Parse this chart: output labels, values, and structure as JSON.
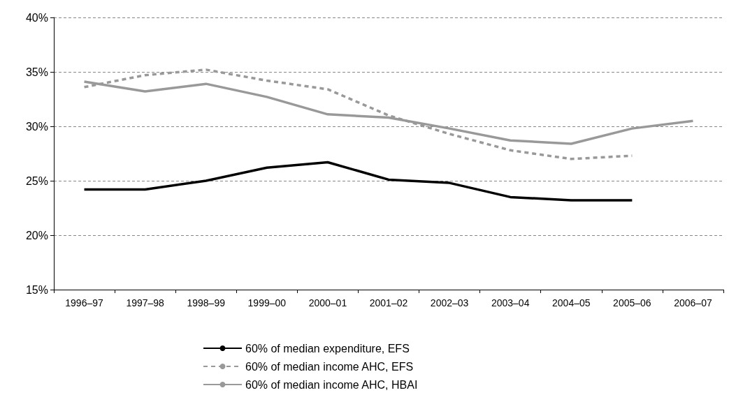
{
  "chart_data": {
    "type": "line",
    "categories": [
      "1996–97",
      "1997–98",
      "1998–99",
      "1999–00",
      "2000–01",
      "2001–02",
      "2002–03",
      "2003–04",
      "2004–05",
      "2005–06",
      "2006–07"
    ],
    "series": [
      {
        "name": "60% of median expenditure, EFS",
        "color": "#000000",
        "line_style": "solid",
        "values": [
          24.2,
          24.2,
          25.0,
          26.2,
          26.7,
          25.1,
          24.8,
          23.5,
          23.2,
          23.2,
          null
        ]
      },
      {
        "name": "60% of median income AHC, EFS",
        "color": "#999999",
        "line_style": "dashed",
        "values": [
          33.6,
          34.7,
          35.2,
          34.2,
          33.4,
          31.0,
          29.3,
          27.8,
          27.0,
          27.3,
          null
        ]
      },
      {
        "name": "60% of median income AHC, HBAI",
        "color": "#999999",
        "line_style": "solid",
        "values": [
          34.1,
          33.2,
          33.9,
          32.7,
          31.1,
          30.8,
          29.8,
          28.7,
          28.4,
          29.8,
          30.5
        ]
      }
    ],
    "ylim": [
      15,
      40
    ],
    "yticks": [
      {
        "value": 15,
        "label": "15%"
      },
      {
        "value": 20,
        "label": "20%"
      },
      {
        "value": 25,
        "label": "25%"
      },
      {
        "value": 30,
        "label": "30%"
      },
      {
        "value": 35,
        "label": "35%"
      },
      {
        "value": 40,
        "label": "40%"
      }
    ],
    "grid": "y",
    "legend": "bottom",
    "marker": "none"
  }
}
